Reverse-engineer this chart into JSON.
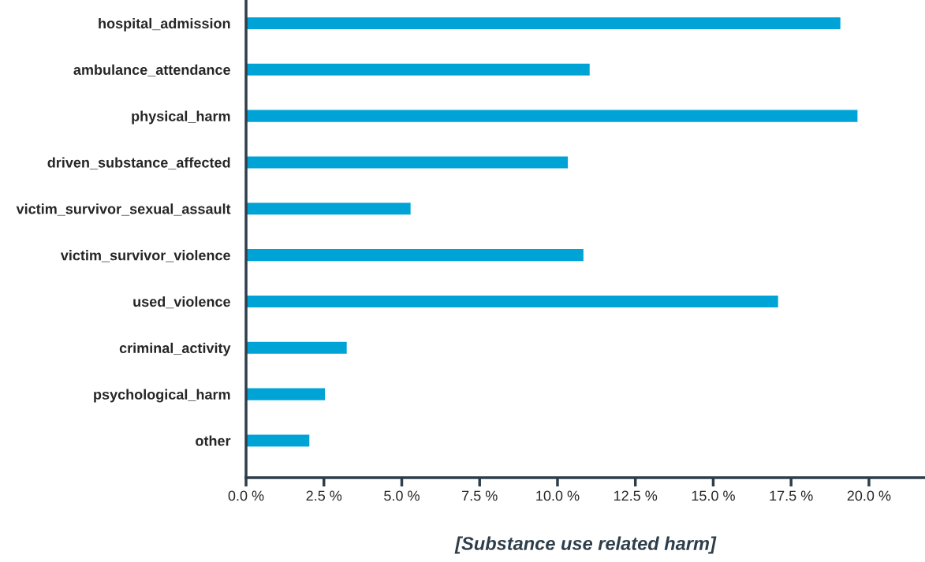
{
  "chart_data": {
    "type": "bar",
    "orientation": "horizontal",
    "xlabel": "[Substance use related harm]",
    "categories": [
      "hospital_admission",
      "ambulance_attendance",
      "physical_harm",
      "driven_substance_affected",
      "victim_survivor_sexual_assault",
      "victim_survivor_violence",
      "used_violence",
      "criminal_activity",
      "psychological_harm",
      "other"
    ],
    "values": [
      19.1,
      11.05,
      19.65,
      10.35,
      5.3,
      10.85,
      17.1,
      3.25,
      2.55,
      2.05
    ],
    "color": "#00a3d5",
    "xlim": [
      0,
      21.8
    ],
    "xticks": [
      {
        "value": 0,
        "label": "0.0 %"
      },
      {
        "value": 2.5,
        "label": "2.5 %"
      },
      {
        "value": 5,
        "label": "5.0 %"
      },
      {
        "value": 7.5,
        "label": "7.5 %"
      },
      {
        "value": 10,
        "label": "10.0 %"
      },
      {
        "value": 12.5,
        "label": "12.5 %"
      },
      {
        "value": 15,
        "label": "15.0 %"
      },
      {
        "value": 17.5,
        "label": "17.5 %"
      },
      {
        "value": 20,
        "label": "20.0 %"
      }
    ],
    "grid": false,
    "legend": false
  }
}
